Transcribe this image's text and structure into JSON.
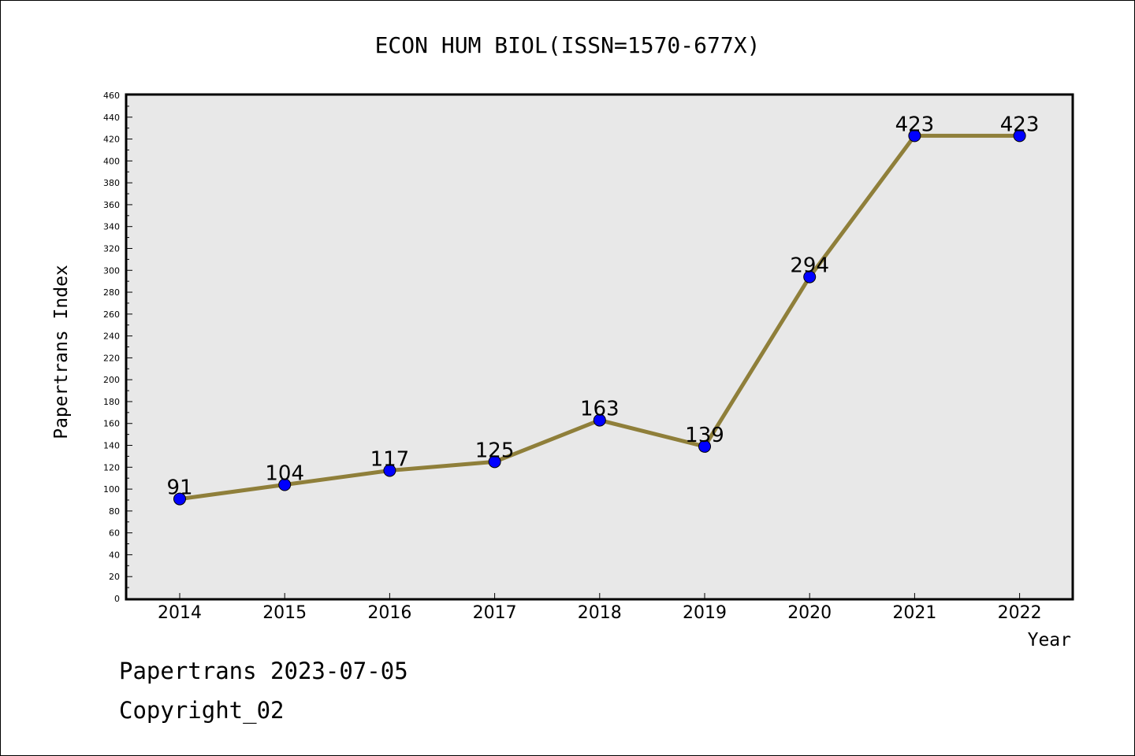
{
  "chart_data": {
    "type": "line",
    "title": "ECON HUM BIOL(ISSN=1570-677X)",
    "xlabel": "Year",
    "ylabel": "Papertrans Index",
    "categories": [
      "2014",
      "2015",
      "2016",
      "2017",
      "2018",
      "2019",
      "2020",
      "2021",
      "2022"
    ],
    "series": [
      {
        "values": [
          91,
          104,
          117,
          125,
          163,
          139,
          294,
          423,
          423
        ]
      }
    ],
    "ylim": [
      0,
      460
    ],
    "ytick_step": 20,
    "grid": false,
    "legend": "none",
    "colors": {
      "line": "#8f7f3a",
      "marker": "#0000ff",
      "plot_bg": "#e8e8e8"
    }
  },
  "footer": {
    "line1": "Papertrans 2023-07-05",
    "line2": "Copyright_02"
  }
}
